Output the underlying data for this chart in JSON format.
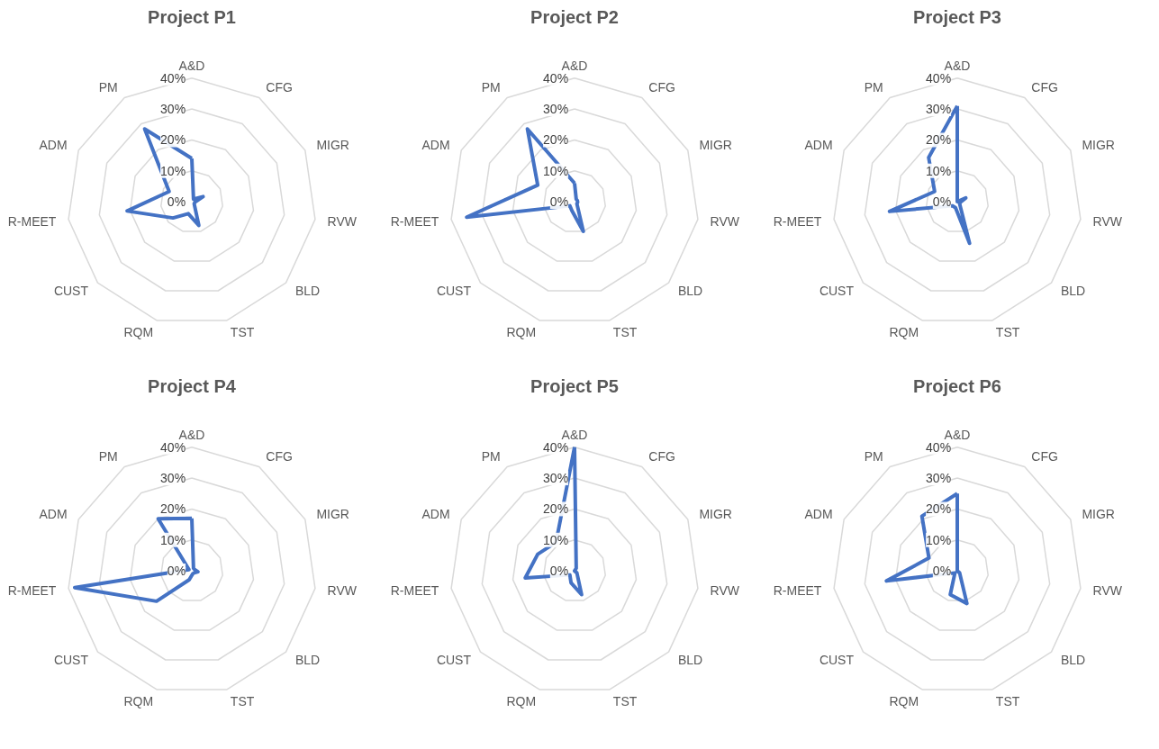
{
  "chart_data": [
    {
      "type": "radar",
      "title": "Project P1",
      "categories": [
        "A&D",
        "CFG",
        "MIGR",
        "RVW",
        "BLD",
        "TST",
        "RQM",
        "CUST",
        "R-MEET",
        "ADM",
        "PM"
      ],
      "ylim": [
        0,
        40
      ],
      "yticks": [
        {
          "value": 0,
          "label": "0%"
        },
        {
          "value": 10,
          "label": "10%"
        },
        {
          "value": 20,
          "label": "20%"
        },
        {
          "value": 30,
          "label": "30%"
        },
        {
          "value": 40,
          "label": "40%"
        }
      ],
      "grid": true,
      "marker": "none",
      "line_style": "solid",
      "series": [
        {
          "color": "#4472c4",
          "values": [
            14,
            1,
            4,
            1,
            1,
            8,
            4,
            8,
            21,
            8,
            28
          ]
        }
      ]
    },
    {
      "type": "radar",
      "title": "Project P2",
      "categories": [
        "A&D",
        "CFG",
        "MIGR",
        "RVW",
        "BLD",
        "TST",
        "RQM",
        "CUST",
        "R-MEET",
        "ADM",
        "PM"
      ],
      "ylim": [
        0,
        40
      ],
      "yticks": [
        {
          "value": 0,
          "label": "0%"
        },
        {
          "value": 10,
          "label": "10%"
        },
        {
          "value": 20,
          "label": "20%"
        },
        {
          "value": 30,
          "label": "30%"
        },
        {
          "value": 40,
          "label": "40%"
        }
      ],
      "grid": true,
      "marker": "none",
      "line_style": "solid",
      "series": [
        {
          "color": "#4472c4",
          "values": [
            6,
            1,
            1,
            1,
            1,
            10,
            3,
            2,
            35,
            13,
            28
          ]
        }
      ]
    },
    {
      "type": "radar",
      "title": "Project P3",
      "categories": [
        "A&D",
        "CFG",
        "MIGR",
        "RVW",
        "BLD",
        "TST",
        "RQM",
        "CUST",
        "R-MEET",
        "ADM",
        "PM"
      ],
      "ylim": [
        0,
        40
      ],
      "yticks": [
        {
          "value": 0,
          "label": "0%"
        },
        {
          "value": 10,
          "label": "10%"
        },
        {
          "value": 20,
          "label": "20%"
        },
        {
          "value": 30,
          "label": "30%"
        },
        {
          "value": 40,
          "label": "40%"
        }
      ],
      "grid": true,
      "marker": "none",
      "line_style": "solid",
      "series": [
        {
          "color": "#4472c4",
          "values": [
            31,
            0,
            3,
            1,
            1,
            14,
            2,
            2,
            22,
            8,
            17
          ]
        }
      ]
    },
    {
      "type": "radar",
      "title": "Project P4",
      "categories": [
        "A&D",
        "CFG",
        "MIGR",
        "RVW",
        "BLD",
        "TST",
        "RQM",
        "CUST",
        "R-MEET",
        "ADM",
        "PM"
      ],
      "ylim": [
        0,
        40
      ],
      "yticks": [
        {
          "value": 0,
          "label": "0%"
        },
        {
          "value": 10,
          "label": "10%"
        },
        {
          "value": 20,
          "label": "20%"
        },
        {
          "value": 30,
          "label": "30%"
        },
        {
          "value": 40,
          "label": "40%"
        }
      ],
      "grid": true,
      "marker": "none",
      "line_style": "solid",
      "series": [
        {
          "color": "#4472c4",
          "values": [
            17,
            1,
            1,
            2,
            1,
            1,
            3,
            15,
            38,
            1,
            20
          ]
        }
      ]
    },
    {
      "type": "radar",
      "title": "Project P5",
      "categories": [
        "A&D",
        "CFG",
        "MIGR",
        "RVW",
        "BLD",
        "TST",
        "RQM",
        "CUST",
        "R-MEET",
        "ADM",
        "PM"
      ],
      "ylim": [
        0,
        40
      ],
      "yticks": [
        {
          "value": 0,
          "label": "0%"
        },
        {
          "value": 10,
          "label": "10%"
        },
        {
          "value": 20,
          "label": "20%"
        },
        {
          "value": 30,
          "label": "30%"
        },
        {
          "value": 40,
          "label": "40%"
        }
      ],
      "grid": true,
      "marker": "none",
      "line_style": "solid",
      "series": [
        {
          "color": "#4472c4",
          "values": [
            40,
            1,
            0,
            0,
            1,
            8,
            4,
            2,
            16,
            13,
            11
          ]
        }
      ]
    },
    {
      "type": "radar",
      "title": "Project P6",
      "categories": [
        "A&D",
        "CFG",
        "MIGR",
        "RVW",
        "BLD",
        "TST",
        "RQM",
        "CUST",
        "R-MEET",
        "ADM",
        "PM"
      ],
      "ylim": [
        0,
        40
      ],
      "yticks": [
        {
          "value": 0,
          "label": "0%"
        },
        {
          "value": 10,
          "label": "10%"
        },
        {
          "value": 20,
          "label": "20%"
        },
        {
          "value": 30,
          "label": "30%"
        },
        {
          "value": 40,
          "label": "40%"
        }
      ],
      "grid": true,
      "marker": "none",
      "line_style": "solid",
      "series": [
        {
          "color": "#4472c4",
          "values": [
            25,
            0,
            0,
            0,
            1,
            11,
            8,
            1,
            23,
            10,
            21
          ]
        }
      ]
    }
  ]
}
